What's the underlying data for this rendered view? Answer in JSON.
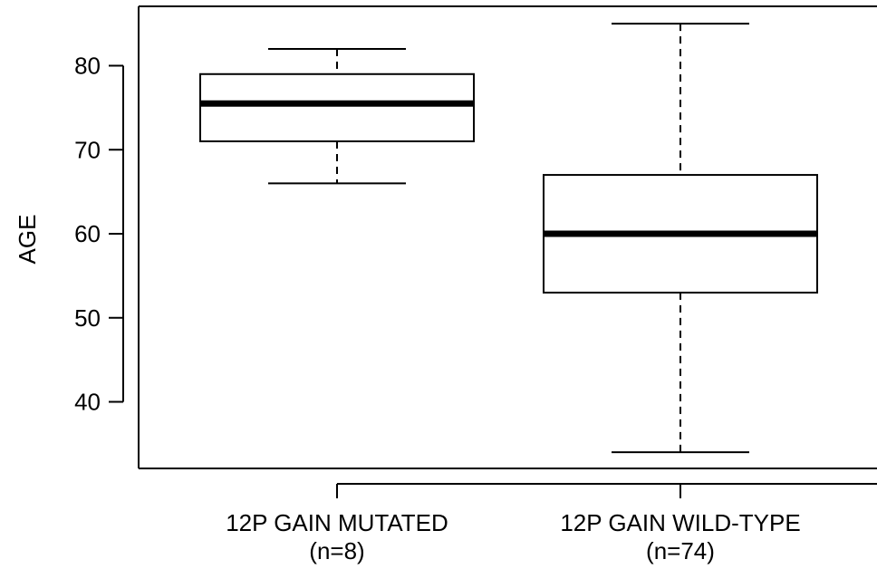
{
  "chart_data": {
    "type": "boxplot",
    "title": "",
    "xlabel": "",
    "ylabel": "AGE",
    "ylim": [
      32,
      87
    ],
    "yticks": [
      "40",
      "50",
      "60",
      "70",
      "80"
    ],
    "grid": false,
    "categories": [
      {
        "name": "12P GAIN MUTATED",
        "count_label": "(n=8)"
      },
      {
        "name": "12P GAIN WILD-TYPE",
        "count_label": "(n=74)"
      }
    ],
    "boxes": [
      {
        "min": 66,
        "q1": 71,
        "median": 75.5,
        "q3": 79,
        "max": 82
      },
      {
        "min": 34,
        "q1": 53,
        "median": 60,
        "q3": 67,
        "max": 85
      }
    ]
  }
}
